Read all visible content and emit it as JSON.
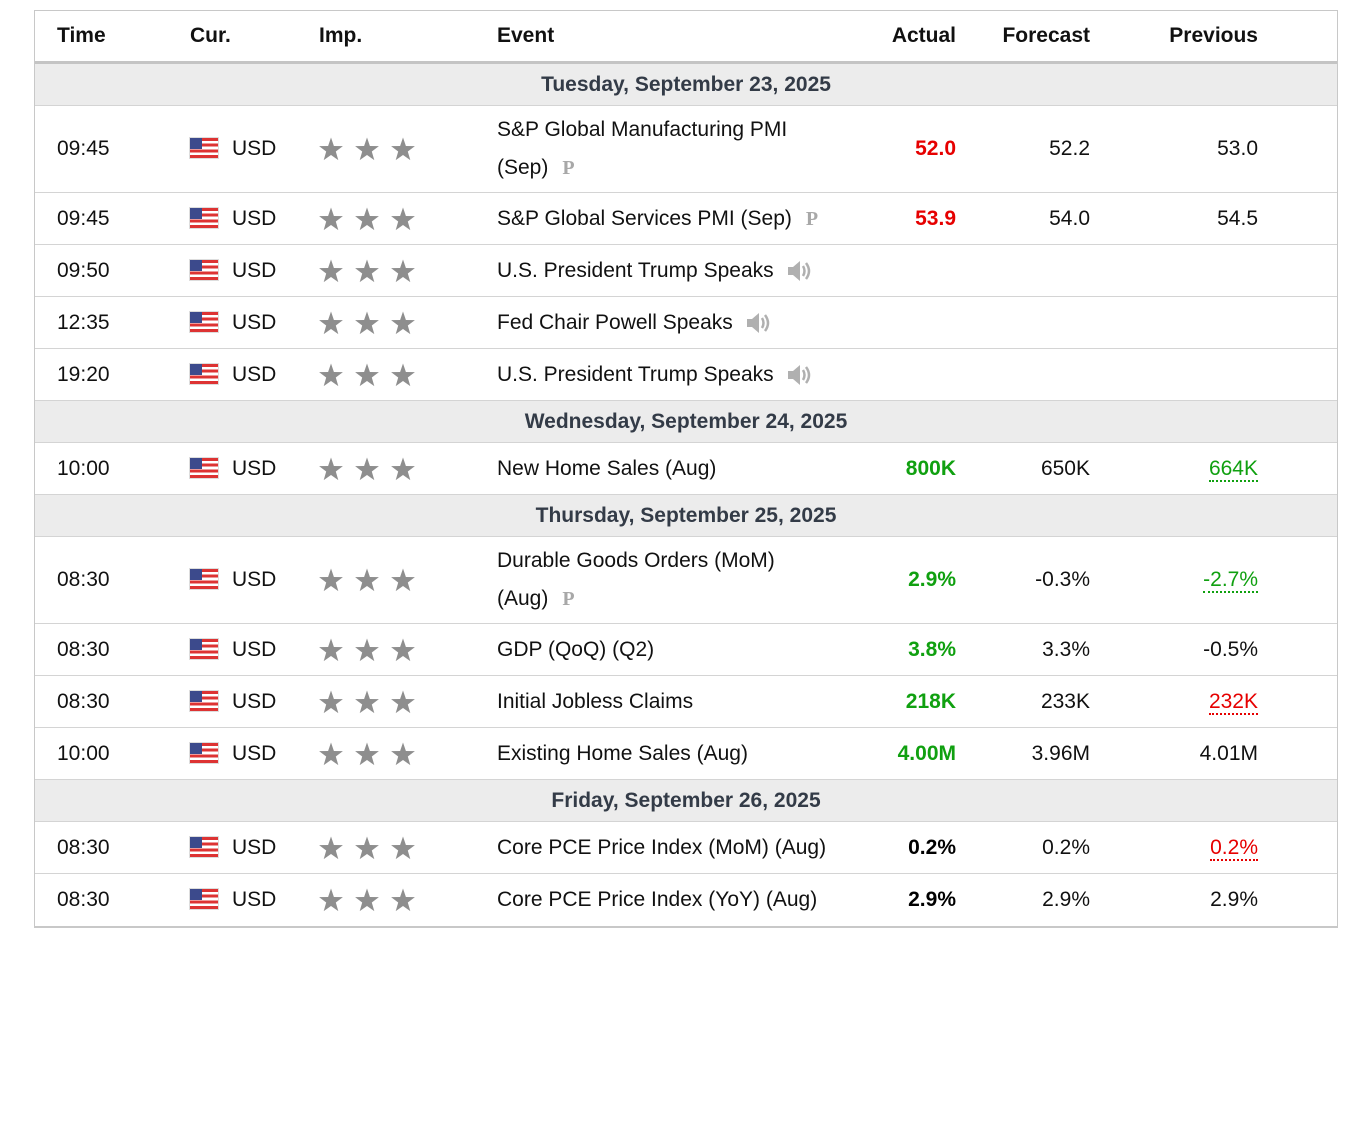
{
  "header": {
    "time": "Time",
    "currency": "Cur.",
    "importance": "Imp.",
    "event": "Event",
    "actual": "Actual",
    "forecast": "Forecast",
    "previous": "Previous"
  },
  "days": [
    {
      "date": "Tuesday, September 23, 2025",
      "events": [
        {
          "time": "09:45",
          "currency": "USD",
          "event": "S&P Global Manufacturing PMI (Sep)",
          "badge": "P",
          "actual": "52.0",
          "actual_color": "#e60000",
          "forecast": "52.2",
          "previous": "53.0"
        },
        {
          "time": "09:45",
          "currency": "USD",
          "event": "S&P Global Services PMI (Sep)",
          "badge": "P",
          "actual": "53.9",
          "actual_color": "#e60000",
          "forecast": "54.0",
          "previous": "54.5"
        },
        {
          "time": "09:50",
          "currency": "USD",
          "event": "U.S. President Trump Speaks",
          "speaker": true
        },
        {
          "time": "12:35",
          "currency": "USD",
          "event": "Fed Chair Powell Speaks",
          "speaker": true
        },
        {
          "time": "19:20",
          "currency": "USD",
          "event": "U.S. President Trump Speaks",
          "speaker": true
        }
      ]
    },
    {
      "date": "Wednesday, September 24, 2025",
      "events": [
        {
          "time": "10:00",
          "currency": "USD",
          "event": "New Home Sales (Aug)",
          "actual": "800K",
          "actual_color": "#10a010",
          "forecast": "650K",
          "previous": "664K",
          "previous_color": "#10a010"
        }
      ]
    },
    {
      "date": "Thursday, September 25, 2025",
      "events": [
        {
          "time": "08:30",
          "currency": "USD",
          "event": "Durable Goods Orders (MoM) (Aug)",
          "badge": "P",
          "actual": "2.9%",
          "actual_color": "#10a010",
          "forecast": "-0.3%",
          "previous": "-2.7%",
          "previous_color": "#10a010"
        },
        {
          "time": "08:30",
          "currency": "USD",
          "event": "GDP (QoQ) (Q2)",
          "actual": "3.8%",
          "actual_color": "#10a010",
          "forecast": "3.3%",
          "previous": "-0.5%"
        },
        {
          "time": "08:30",
          "currency": "USD",
          "event": "Initial Jobless Claims",
          "actual": "218K",
          "actual_color": "#10a010",
          "forecast": "233K",
          "previous": "232K",
          "previous_color": "#e60000"
        },
        {
          "time": "10:00",
          "currency": "USD",
          "event": "Existing Home Sales (Aug)",
          "actual": "4.00M",
          "actual_color": "#10a010",
          "forecast": "3.96M",
          "previous": "4.01M"
        }
      ]
    },
    {
      "date": "Friday, September 26, 2025",
      "events": [
        {
          "time": "08:30",
          "currency": "USD",
          "event": "Core PCE Price Index (MoM) (Aug)",
          "actual": "0.2%",
          "actual_color": "#000000",
          "forecast": "0.2%",
          "previous": "0.2%",
          "previous_color": "#e60000"
        },
        {
          "time": "08:30",
          "currency": "USD",
          "event": "Core PCE Price Index (YoY) (Aug)",
          "actual": "2.9%",
          "actual_color": "#000000",
          "forecast": "2.9%",
          "previous": "2.9%"
        }
      ]
    }
  ]
}
